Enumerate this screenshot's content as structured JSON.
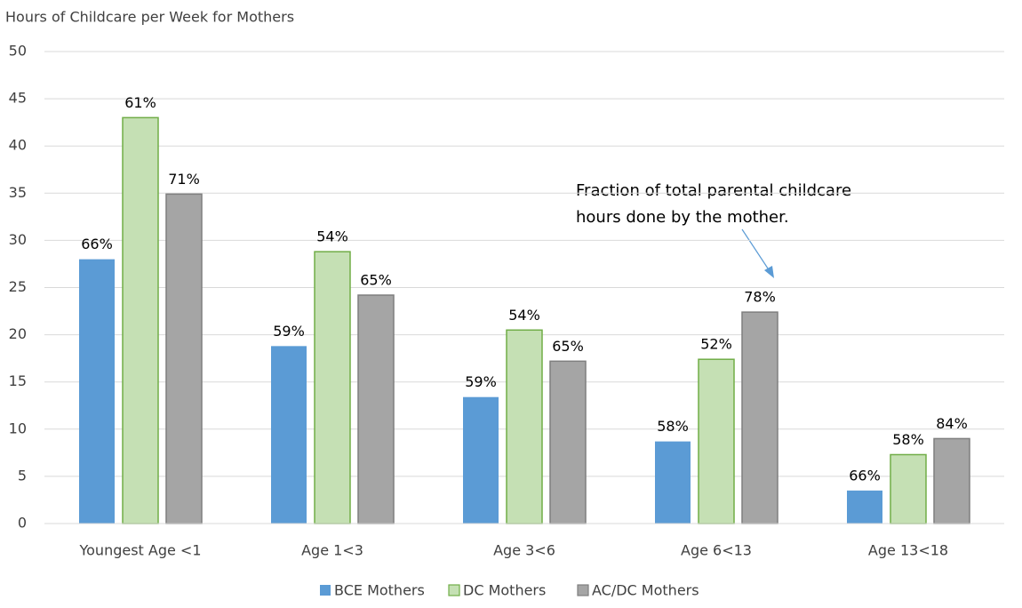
{
  "chart_data": {
    "type": "bar",
    "title": "Hours of Childcare per Week for Mothers",
    "categories": [
      "Youngest Age <1",
      "Age 1<3",
      "Age 3<6",
      "Age 6<13",
      "Age 13<18"
    ],
    "series": [
      {
        "name": "BCE Mothers",
        "color": "#5b9bd5",
        "values": [
          28,
          18.8,
          13.4,
          8.7,
          3.5
        ],
        "labels": [
          "66%",
          "59%",
          "59%",
          "58%",
          "66%"
        ]
      },
      {
        "name": "DC Mothers",
        "color": "#c5e0b4",
        "values": [
          43,
          28.8,
          20.5,
          17.4,
          7.3
        ],
        "labels": [
          "61%",
          "54%",
          "54%",
          "52%",
          "58%"
        ]
      },
      {
        "name": "AC/DC Mothers",
        "color": "#a5a5a5",
        "values": [
          34.9,
          24.2,
          17.2,
          22.4,
          9.0
        ],
        "labels": [
          "71%",
          "65%",
          "65%",
          "78%",
          "84%"
        ]
      }
    ],
    "annotation": [
      "Fraction of total parental childcare",
      "hours done by the mother."
    ],
    "ylim": [
      0,
      50
    ],
    "yticks": [
      0,
      5,
      10,
      15,
      20,
      25,
      30,
      35,
      40,
      45,
      50
    ],
    "grid": true
  }
}
